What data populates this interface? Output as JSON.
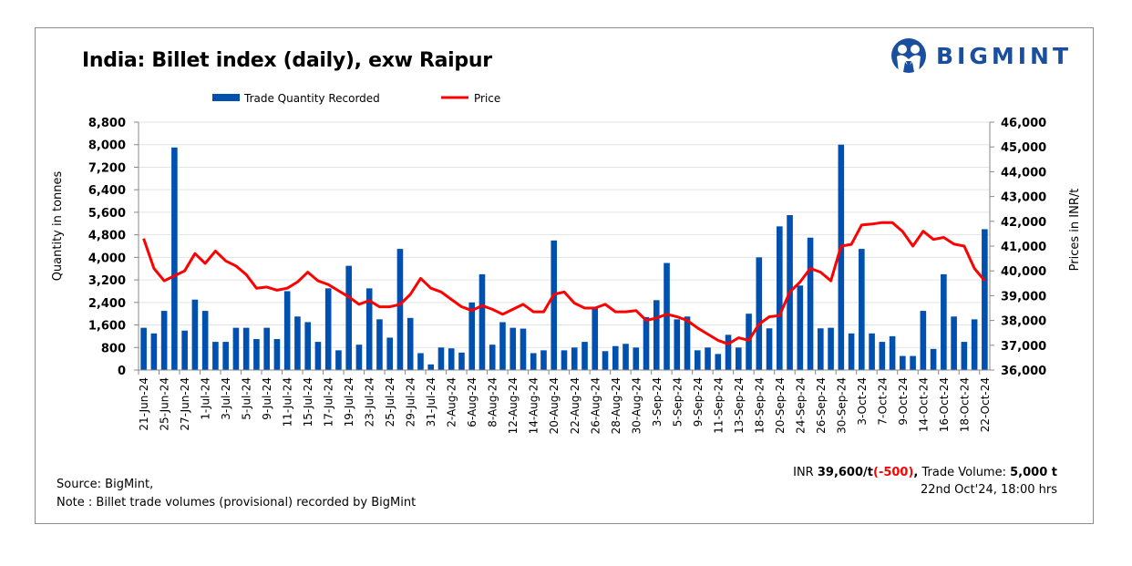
{
  "title": "India: Billet index (daily), exw Raipur",
  "logo": {
    "text": "BIGMINT",
    "color": "#1a4fa0"
  },
  "footer": {
    "source": "Source: BigMint,",
    "note": "Note : Billet trade volumes (provisional) recorded by BigMint",
    "summary": {
      "currency": "INR",
      "price": "39,600/t",
      "change": "(-500)",
      "sep": ",",
      "volume_label": "Trade Volume:",
      "volume": "5,000 t"
    },
    "timestamp": "22nd Oct'24, 18:00 hrs"
  },
  "chart_data": {
    "type": "bar+line",
    "title": "India: Billet index (daily), exw Raipur",
    "ylabel": "Quantity in tonnes",
    "y2label": "Prices in INR/t",
    "ylim": [
      0,
      8800
    ],
    "yticks": [
      0,
      800,
      1600,
      2400,
      3200,
      4000,
      4800,
      5600,
      6400,
      7200,
      8000,
      8800
    ],
    "y2lim": [
      36000,
      46000
    ],
    "y2ticks": [
      36000,
      37000,
      38000,
      39000,
      40000,
      41000,
      42000,
      43000,
      44000,
      45000,
      46000
    ],
    "grid": true,
    "legend": "top",
    "categories": [
      "21-Jun-24",
      "",
      "25-Jun-24",
      "",
      "27-Jun-24",
      "",
      "1-Jul-24",
      "",
      "3-Jul-24",
      "",
      "5-Jul-24",
      "",
      "9-Jul-24",
      "",
      "11-Jul-24",
      "",
      "15-Jul-24",
      "",
      "17-Jul-24",
      "",
      "19-Jul-24",
      "",
      "23-Jul-24",
      "",
      "25-Jul-24",
      "",
      "29-Jul-24",
      "",
      "31-Jul-24",
      "",
      "2-Aug-24",
      "",
      "6-Aug-24",
      "",
      "8-Aug-24",
      "",
      "12-Aug-24",
      "",
      "14-Aug-24",
      "",
      "20-Aug-24",
      "",
      "22-Aug-24",
      "",
      "26-Aug-24",
      "",
      "28-Aug-24",
      "",
      "30-Aug-24",
      "",
      "3-Sep-24",
      "",
      "5-Sep-24",
      "",
      "9-Sep-24",
      "",
      "11-Sep-24",
      "",
      "13-Sep-24",
      "",
      "18-Sep-24",
      "",
      "20-Sep-24",
      "",
      "24-Sep-24",
      "",
      "26-Sep-24",
      "",
      "30-Sep-24",
      "",
      "3-Oct-24",
      "",
      "7-Oct-24",
      "",
      "9-Oct-24",
      "",
      "14-Oct-24",
      "",
      "16-Oct-24",
      "",
      "18-Oct-24",
      "",
      "22-Oct-24"
    ],
    "series": [
      {
        "name": "Trade Quantity Recorded",
        "type": "bar",
        "axis": "left",
        "color": "#0050b0",
        "values": [
          1500,
          1300,
          2100,
          7900,
          1400,
          2500,
          2100,
          1000,
          1000,
          1500,
          1500,
          1100,
          1500,
          1100,
          2800,
          1900,
          1700,
          1000,
          2900,
          700,
          3700,
          900,
          2900,
          1800,
          1150,
          4300,
          1850,
          600,
          200,
          800,
          770,
          620,
          2400,
          3400,
          900,
          1700,
          1500,
          1470,
          600,
          700,
          4600,
          700,
          800,
          1000,
          2250,
          670,
          850,
          930,
          800,
          1880,
          2480,
          3800,
          1800,
          1900,
          700,
          800,
          570,
          1250,
          800,
          2000,
          4000,
          1480,
          5100,
          5500,
          3000,
          4700,
          1480,
          1500,
          8000,
          1300,
          4300,
          1300,
          1000,
          1200,
          500,
          500,
          2100,
          750,
          3400,
          1900,
          1000,
          1800,
          5000
        ]
      },
      {
        "name": "Price",
        "type": "line",
        "axis": "right",
        "color": "#ff0000",
        "values": [
          41300,
          40100,
          39600,
          39800,
          40000,
          40700,
          40300,
          40800,
          40400,
          40200,
          39850,
          39300,
          39350,
          39220,
          39300,
          39550,
          39950,
          39600,
          39450,
          39200,
          38950,
          38650,
          38800,
          38550,
          38550,
          38650,
          39050,
          39700,
          39300,
          39150,
          38850,
          38550,
          38400,
          38600,
          38450,
          38250,
          38450,
          38650,
          38350,
          38350,
          39050,
          39150,
          38700,
          38500,
          38500,
          38650,
          38350,
          38350,
          38400,
          38000,
          38100,
          38250,
          38150,
          38000,
          37700,
          37450,
          37200,
          37050,
          37300,
          37200,
          37850,
          38150,
          38200,
          39150,
          39550,
          40100,
          39950,
          39600,
          41000,
          41070,
          41850,
          41890,
          41950,
          41950,
          41590,
          41000,
          41600,
          41270,
          41350,
          41080,
          41000,
          40100,
          39600
        ]
      }
    ]
  }
}
